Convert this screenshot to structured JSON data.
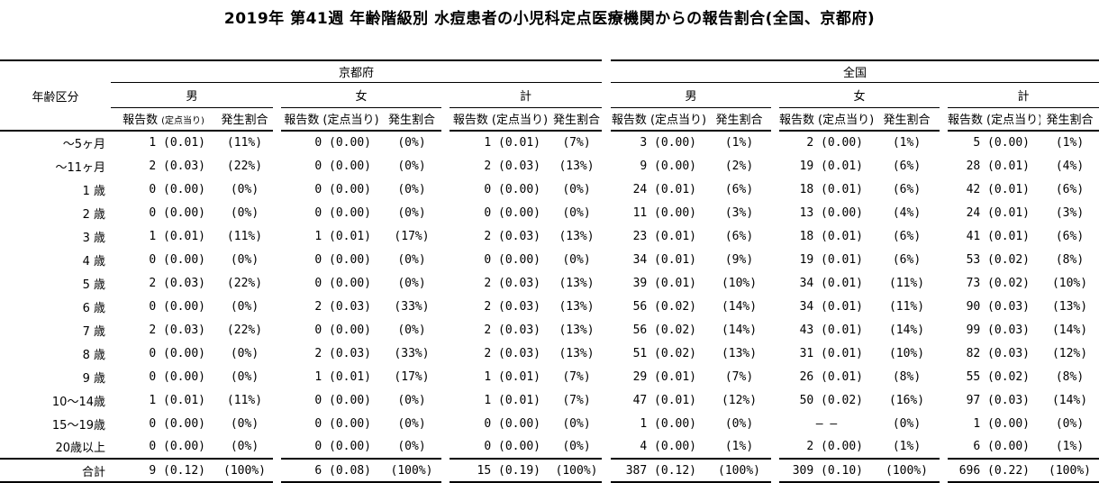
{
  "page": {
    "background": "#ffffff",
    "text_color": "#000000",
    "line_color": "#000000"
  },
  "title": "2019年 第41週 年齢階級別 水痘患者の小児科定点医療機関からの報告割合(全国、京都府)",
  "table": {
    "corner_header": "年齢区分",
    "groups": [
      {
        "label": "京都府"
      },
      {
        "label": "全国"
      }
    ],
    "sex_headers": [
      "男",
      "女",
      "計"
    ],
    "count_label": "報告数",
    "count_paren": "(定点当り)",
    "pct_label": "発生割合",
    "rows": [
      {
        "age": "～5ヶ月",
        "values": [
          "1 (0.01)",
          "(11%)",
          "0 (0.00)",
          "(0%)",
          "1 (0.01)",
          "(7%)",
          "3 (0.00)",
          "(1%)",
          "2 (0.00)",
          "(1%)",
          "5 (0.00)",
          "(1%)"
        ]
      },
      {
        "age": "～11ヶ月",
        "values": [
          "2 (0.03)",
          "(22%)",
          "0 (0.00)",
          "(0%)",
          "2 (0.03)",
          "(13%)",
          "9 (0.00)",
          "(2%)",
          "19 (0.01)",
          "(6%)",
          "28 (0.01)",
          "(4%)"
        ]
      },
      {
        "age": "1 歳",
        "values": [
          "0 (0.00)",
          "(0%)",
          "0 (0.00)",
          "(0%)",
          "0 (0.00)",
          "(0%)",
          "24 (0.01)",
          "(6%)",
          "18 (0.01)",
          "(6%)",
          "42 (0.01)",
          "(6%)"
        ]
      },
      {
        "age": "2 歳",
        "values": [
          "0 (0.00)",
          "(0%)",
          "0 (0.00)",
          "(0%)",
          "0 (0.00)",
          "(0%)",
          "11 (0.00)",
          "(3%)",
          "13 (0.00)",
          "(4%)",
          "24 (0.01)",
          "(3%)"
        ]
      },
      {
        "age": "3 歳",
        "values": [
          "1 (0.01)",
          "(11%)",
          "1 (0.01)",
          "(17%)",
          "2 (0.03)",
          "(13%)",
          "23 (0.01)",
          "(6%)",
          "18 (0.01)",
          "(6%)",
          "41 (0.01)",
          "(6%)"
        ]
      },
      {
        "age": "4 歳",
        "values": [
          "0 (0.00)",
          "(0%)",
          "0 (0.00)",
          "(0%)",
          "0 (0.00)",
          "(0%)",
          "34 (0.01)",
          "(9%)",
          "19 (0.01)",
          "(6%)",
          "53 (0.02)",
          "(8%)"
        ]
      },
      {
        "age": "5 歳",
        "values": [
          "2 (0.03)",
          "(22%)",
          "0 (0.00)",
          "(0%)",
          "2 (0.03)",
          "(13%)",
          "39 (0.01)",
          "(10%)",
          "34 (0.01)",
          "(11%)",
          "73 (0.02)",
          "(10%)"
        ]
      },
      {
        "age": "6 歳",
        "values": [
          "0 (0.00)",
          "(0%)",
          "2 (0.03)",
          "(33%)",
          "2 (0.03)",
          "(13%)",
          "56 (0.02)",
          "(14%)",
          "34 (0.01)",
          "(11%)",
          "90 (0.03)",
          "(13%)"
        ]
      },
      {
        "age": "7 歳",
        "values": [
          "2 (0.03)",
          "(22%)",
          "0 (0.00)",
          "(0%)",
          "2 (0.03)",
          "(13%)",
          "56 (0.02)",
          "(14%)",
          "43 (0.01)",
          "(14%)",
          "99 (0.03)",
          "(14%)"
        ]
      },
      {
        "age": "8 歳",
        "values": [
          "0 (0.00)",
          "(0%)",
          "2 (0.03)",
          "(33%)",
          "2 (0.03)",
          "(13%)",
          "51 (0.02)",
          "(13%)",
          "31 (0.01)",
          "(10%)",
          "82 (0.03)",
          "(12%)"
        ]
      },
      {
        "age": "9 歳",
        "values": [
          "0 (0.00)",
          "(0%)",
          "1 (0.01)",
          "(17%)",
          "1 (0.01)",
          "(7%)",
          "29 (0.01)",
          "(7%)",
          "26 (0.01)",
          "(8%)",
          "55 (0.02)",
          "(8%)"
        ]
      },
      {
        "age": "10～14歳",
        "values": [
          "1 (0.01)",
          "(11%)",
          "0 (0.00)",
          "(0%)",
          "1 (0.01)",
          "(7%)",
          "47 (0.01)",
          "(12%)",
          "50 (0.02)",
          "(16%)",
          "97 (0.03)",
          "(14%)"
        ]
      },
      {
        "age": "15～19歳",
        "values": [
          "0 (0.00)",
          "(0%)",
          "0 (0.00)",
          "(0%)",
          "0 (0.00)",
          "(0%)",
          "1 (0.00)",
          "(0%)",
          "– –",
          "(0%)",
          "1 (0.00)",
          "(0%)"
        ]
      },
      {
        "age": "20歳以上",
        "values": [
          "0 (0.00)",
          "(0%)",
          "0 (0.00)",
          "(0%)",
          "0 (0.00)",
          "(0%)",
          "4 (0.00)",
          "(1%)",
          "2 (0.00)",
          "(1%)",
          "6 (0.00)",
          "(1%)"
        ]
      }
    ],
    "total": {
      "age": "合計",
      "values": [
        "9 (0.12)",
        "(100%)",
        "6 (0.08)",
        "(100%)",
        "15 (0.19)",
        "(100%)",
        "387 (0.12)",
        "(100%)",
        "309 (0.10)",
        "(100%)",
        "696 (0.22)",
        "(100%)"
      ]
    }
  }
}
